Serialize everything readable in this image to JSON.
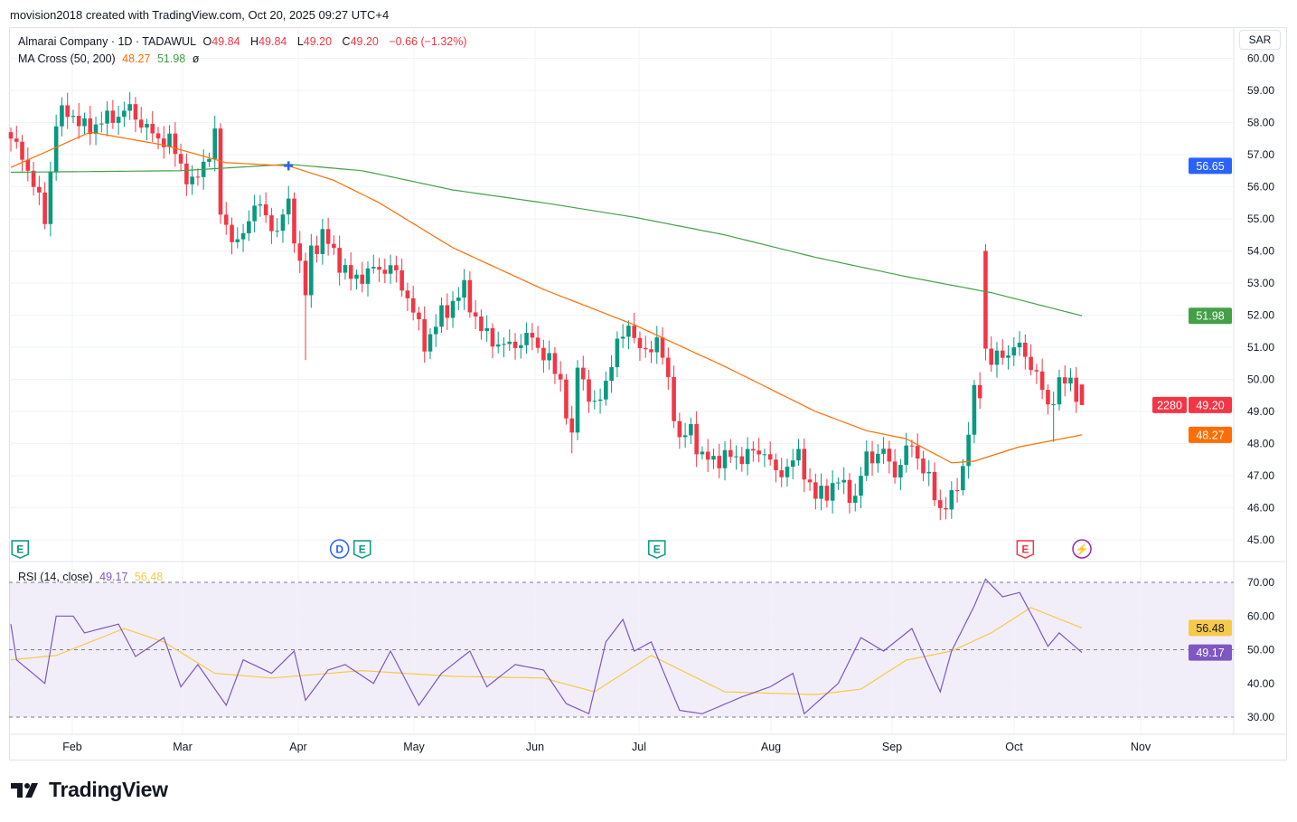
{
  "header": {
    "attribution": "movision2018 created with TradingView.com, Oct 20, 2025 09:27 UTC+4"
  },
  "legend": {
    "symbol": "Almarai Company · 1D · TADAWUL",
    "o_label": "O",
    "o": "49.84",
    "h_label": "H",
    "h": "49.84",
    "l_label": "L",
    "l": "49.20",
    "c_label": "C",
    "c": "49.20",
    "change": "−0.66 (−1.32%)",
    "ma_label": "MA Cross (50, 200)",
    "ma50": "48.27",
    "ma200": "51.98",
    "ma_symbol": "ø",
    "rsi_label": "RSI (14, close)",
    "rsi": "49.17",
    "rsi_ma": "56.48"
  },
  "currency": "SAR",
  "brand": "TradingView",
  "colors": {
    "up": "#089981",
    "down": "#f23645",
    "ma50": "#ff6d00",
    "ma200": "#43a047",
    "rsi": "#7e57c2",
    "rsi_ma": "#f7c948",
    "crosshair": "#2962ff"
  },
  "chart_data": [
    {
      "type": "candlestick",
      "title": "Almarai Company · 1D · TADAWUL",
      "ylim": [
        45,
        60
      ],
      "y_ticks": [
        "45.00",
        "46.00",
        "47.00",
        "48.00",
        "49.00",
        "50.00",
        "51.00",
        "52.00",
        "53.00",
        "54.00",
        "55.00",
        "56.00",
        "57.00",
        "58.00",
        "59.00",
        "60.00"
      ],
      "x_ticks": [
        "Feb",
        "Mar",
        "Apr",
        "May",
        "Jun",
        "Jul",
        "Aug",
        "Sep",
        "Oct",
        "Nov"
      ],
      "bars_count": 190,
      "close_keypoints": [
        [
          0,
          57.5
        ],
        [
          3,
          56.6
        ],
        [
          6,
          55.0
        ],
        [
          8,
          58.0
        ],
        [
          10,
          58.4
        ],
        [
          13,
          57.8
        ],
        [
          17,
          58.1
        ],
        [
          21,
          58.4
        ],
        [
          25,
          57.6
        ],
        [
          28,
          57.4
        ],
        [
          32,
          56.0
        ],
        [
          36,
          57.5
        ],
        [
          37,
          55.2
        ],
        [
          40,
          54.1
        ],
        [
          43,
          55.5
        ],
        [
          47,
          54.6
        ],
        [
          49,
          55.5
        ],
        [
          52,
          52.6
        ],
        [
          53,
          54.0
        ],
        [
          55,
          54.5
        ],
        [
          60,
          53.1
        ],
        [
          64,
          53.4
        ],
        [
          67,
          53.5
        ],
        [
          70,
          52.6
        ],
        [
          73,
          51.1
        ],
        [
          76,
          52.0
        ],
        [
          80,
          52.8
        ],
        [
          83,
          51.5
        ],
        [
          87,
          51.0
        ],
        [
          92,
          51.3
        ],
        [
          97,
          50.0
        ],
        [
          99,
          48.0
        ],
        [
          100,
          50.5
        ],
        [
          103,
          49.0
        ],
        [
          105,
          50.0
        ],
        [
          107,
          51.0
        ],
        [
          109,
          51.8
        ],
        [
          111,
          50.8
        ],
        [
          114,
          51.2
        ],
        [
          116,
          50.0
        ],
        [
          118,
          48.0
        ],
        [
          120,
          48.5
        ],
        [
          122,
          47.5
        ],
        [
          129,
          47.6
        ],
        [
          133,
          47.8
        ],
        [
          135,
          47.0
        ],
        [
          139,
          47.6
        ],
        [
          142,
          46.3
        ],
        [
          146,
          46.8
        ],
        [
          149,
          46.3
        ],
        [
          151,
          47.6
        ],
        [
          154,
          47.7
        ],
        [
          156,
          47.1
        ],
        [
          159,
          48.0
        ],
        [
          161,
          47.2
        ],
        [
          164,
          46.0
        ],
        [
          166,
          46.2
        ],
        [
          168,
          47.3
        ],
        [
          170,
          49.5
        ],
        [
          171,
          49.6
        ],
        [
          172,
          51.0
        ],
        [
          173,
          50.5
        ],
        [
          175,
          50.8
        ],
        [
          178,
          51.0
        ],
        [
          180,
          50.5
        ],
        [
          183,
          49.2
        ],
        [
          185,
          49.8
        ],
        [
          187,
          50.0
        ],
        [
          189,
          49.2
        ]
      ],
      "last": {
        "open": 49.84,
        "high": 49.84,
        "low": 49.2,
        "close": 49.2,
        "volume_badge": "2280"
      },
      "series": [
        {
          "name": "MA 50",
          "value": "48.27",
          "points": [
            [
              0,
              56.6
            ],
            [
              14,
              57.7
            ],
            [
              27,
              57.3
            ],
            [
              38,
              56.75
            ],
            [
              49,
              56.65
            ],
            [
              57,
              56.2
            ],
            [
              65,
              55.5
            ],
            [
              78,
              54.1
            ],
            [
              94,
              52.8
            ],
            [
              110,
              51.7
            ],
            [
              126,
              50.4
            ],
            [
              142,
              49.0
            ],
            [
              151,
              48.4
            ],
            [
              158,
              48.15
            ],
            [
              166,
              47.4
            ],
            [
              170,
              47.45
            ],
            [
              178,
              47.9
            ],
            [
              189,
              48.27
            ]
          ]
        },
        {
          "name": "MA 200",
          "value": "51.98",
          "points": [
            [
              0,
              56.45
            ],
            [
              30,
              56.5
            ],
            [
              49,
              56.7
            ],
            [
              62,
              56.5
            ],
            [
              78,
              55.9
            ],
            [
              94,
              55.5
            ],
            [
              110,
              55.05
            ],
            [
              126,
              54.5
            ],
            [
              142,
              53.8
            ],
            [
              158,
              53.2
            ],
            [
              173,
              52.7
            ],
            [
              189,
              51.98
            ]
          ]
        }
      ],
      "crosshair_marker": {
        "index": 49,
        "price": 56.65
      },
      "price_badges": [
        {
          "label": "56.65",
          "kind": "crosshair"
        },
        {
          "label": "51.98",
          "kind": "ma200"
        },
        {
          "label": "49.20",
          "kind": "last"
        },
        {
          "label": "48.27",
          "kind": "ma50"
        }
      ],
      "event_markers": [
        {
          "index": 1,
          "label": "E",
          "kind": "earnings"
        },
        {
          "index": 58,
          "label": "D",
          "kind": "dividend"
        },
        {
          "index": 62,
          "label": "E",
          "kind": "earnings"
        },
        {
          "index": 114,
          "label": "E",
          "kind": "earnings"
        },
        {
          "index": 179,
          "label": "E",
          "kind": "earnings-upcoming"
        },
        {
          "index": 189,
          "label": "⚡",
          "kind": "split"
        }
      ]
    },
    {
      "type": "line",
      "title": "RSI (14, close)",
      "ylim": [
        30,
        70
      ],
      "y_ticks": [
        "30.00",
        "40.00",
        "50.00",
        "60.00",
        "70.00"
      ],
      "bands": [
        30,
        50,
        70
      ],
      "series": [
        {
          "name": "RSI",
          "value": "49.17",
          "points": [
            [
              0,
              57.6
            ],
            [
              1,
              47
            ],
            [
              6,
              40
            ],
            [
              8,
              60
            ],
            [
              11,
              60
            ],
            [
              13,
              55
            ],
            [
              19,
              57.6
            ],
            [
              22,
              48
            ],
            [
              27,
              53.6
            ],
            [
              30,
              39
            ],
            [
              33,
              45.6
            ],
            [
              38,
              33.5
            ],
            [
              41,
              47
            ],
            [
              46,
              43
            ],
            [
              50,
              49.6
            ],
            [
              52,
              35
            ],
            [
              56,
              44
            ],
            [
              59,
              45.6
            ],
            [
              64,
              40
            ],
            [
              67,
              49.6
            ],
            [
              72,
              33.5
            ],
            [
              76,
              43
            ],
            [
              81,
              49.6
            ],
            [
              84,
              39
            ],
            [
              89,
              45.6
            ],
            [
              94,
              44
            ],
            [
              98,
              34
            ],
            [
              102,
              31
            ],
            [
              105,
              52.3
            ],
            [
              108,
              59
            ],
            [
              110,
              49.6
            ],
            [
              113,
              52.3
            ],
            [
              118,
              32
            ],
            [
              122,
              31
            ],
            [
              129,
              36
            ],
            [
              134,
              39
            ],
            [
              138,
              43
            ],
            [
              140,
              31
            ],
            [
              146,
              40
            ],
            [
              150,
              53.6
            ],
            [
              154,
              49.6
            ],
            [
              159,
              56.3
            ],
            [
              164,
              37.5
            ],
            [
              166,
              49.6
            ],
            [
              170,
              63
            ],
            [
              172,
              71
            ],
            [
              175,
              65.7
            ],
            [
              178,
              67
            ],
            [
              181,
              57.6
            ],
            [
              183,
              51
            ],
            [
              185,
              55
            ],
            [
              189,
              49.17
            ]
          ]
        },
        {
          "name": "RSI MA",
          "value": "56.48",
          "points": [
            [
              0,
              47
            ],
            [
              8,
              48.3
            ],
            [
              14,
              52.3
            ],
            [
              20,
              56.3
            ],
            [
              27,
              52.3
            ],
            [
              36,
              43
            ],
            [
              46,
              41.6
            ],
            [
              62,
              43.8
            ],
            [
              78,
              42.1
            ],
            [
              94,
              41.6
            ],
            [
              103,
              37.5
            ],
            [
              113,
              48.3
            ],
            [
              126,
              37.5
            ],
            [
              142,
              36.7
            ],
            [
              150,
              38.3
            ],
            [
              158,
              46.9
            ],
            [
              166,
              49.6
            ],
            [
              173,
              55
            ],
            [
              180,
              62.5
            ],
            [
              189,
              56.48
            ]
          ]
        }
      ]
    }
  ]
}
